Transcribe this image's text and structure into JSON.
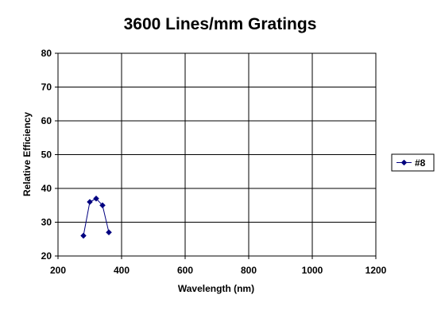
{
  "chart_data": {
    "type": "line",
    "title": "3600 Lines/mm Gratings",
    "xlabel": "Wavelength (nm)",
    "ylabel": "Relative Efficiency",
    "xlim": [
      200,
      1200
    ],
    "ylim": [
      20,
      80
    ],
    "x_ticks": [
      200,
      400,
      600,
      800,
      1000,
      1200
    ],
    "y_ticks": [
      20,
      30,
      40,
      50,
      60,
      70,
      80
    ],
    "grid": true,
    "legend_position": "right",
    "series": [
      {
        "name": "#8",
        "color": "#000080",
        "marker": "diamond",
        "points": [
          {
            "x": 280,
            "y": 26
          },
          {
            "x": 300,
            "y": 36
          },
          {
            "x": 320,
            "y": 37
          },
          {
            "x": 340,
            "y": 35
          },
          {
            "x": 360,
            "y": 27
          }
        ]
      }
    ]
  }
}
